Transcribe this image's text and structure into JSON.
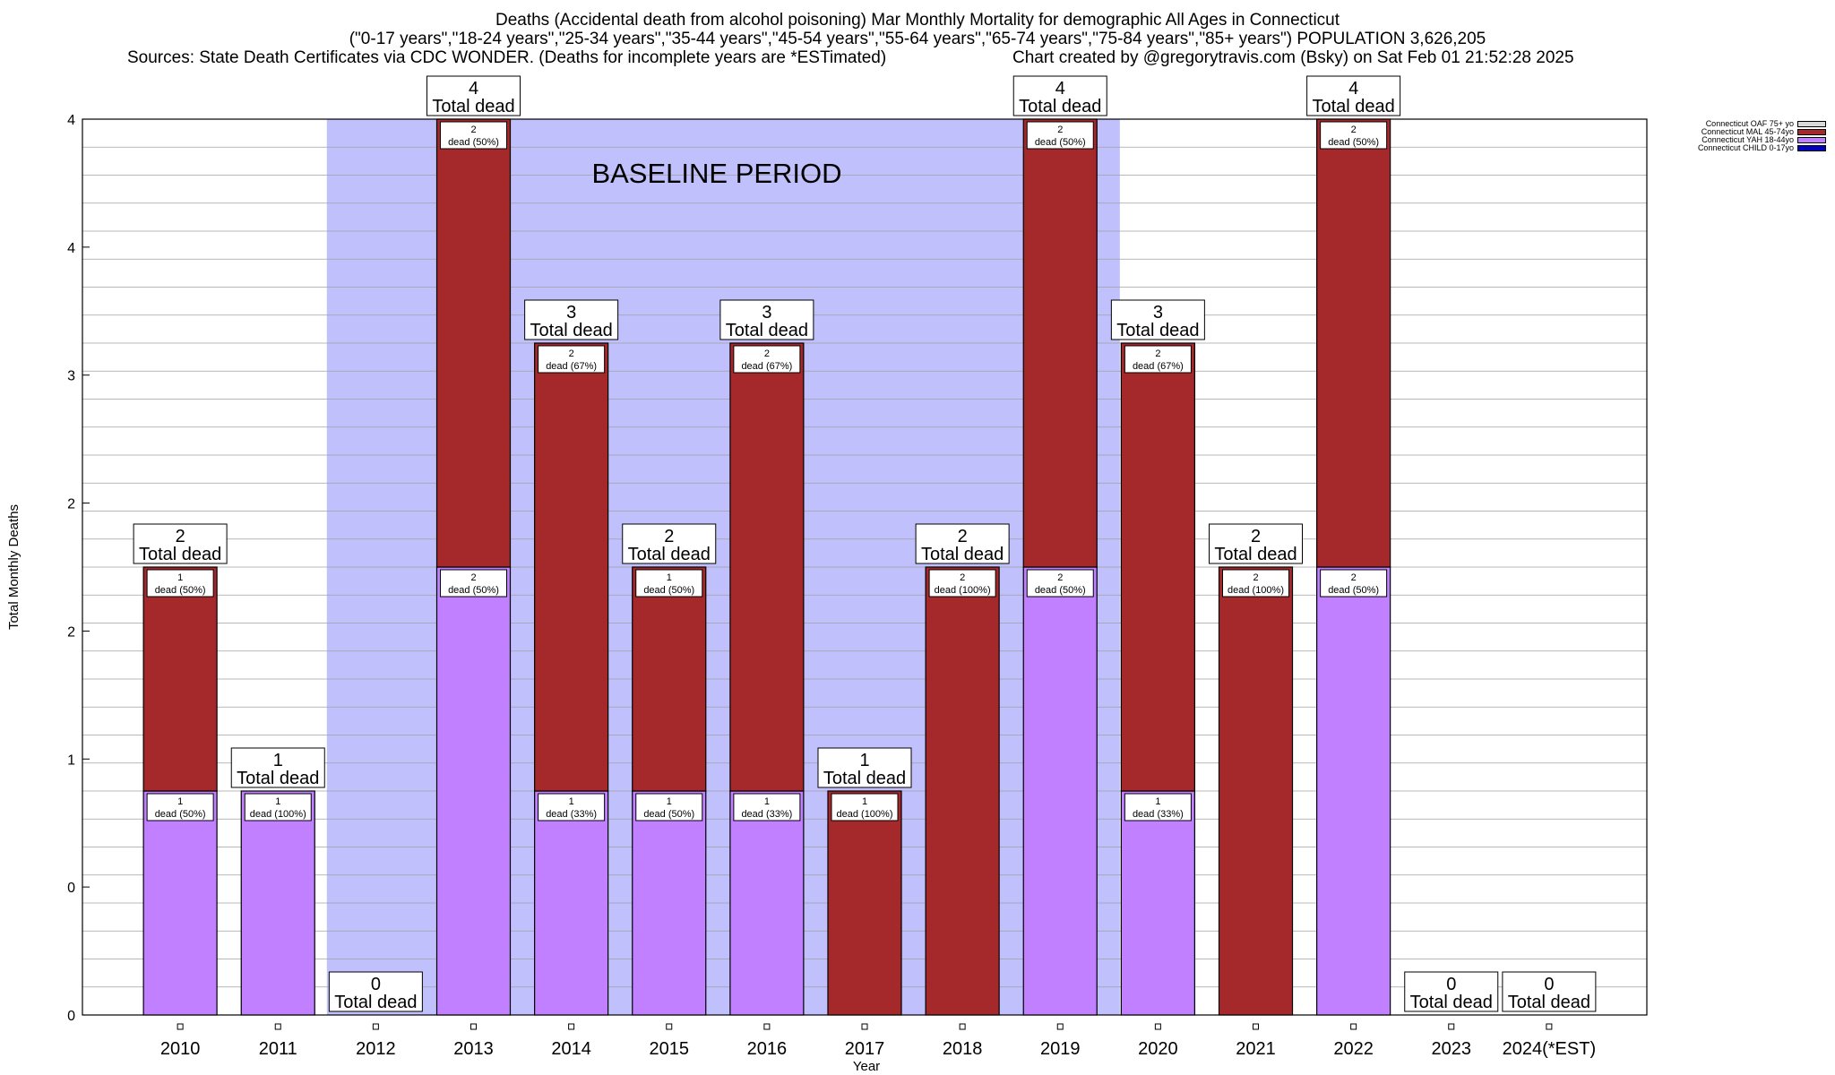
{
  "header": {
    "line1": "Deaths (Accidental death from alcohol poisoning) Mar Monthly Mortality for demographic All Ages in Connecticut",
    "line2": "(\"0-17 years\",\"18-24 years\",\"25-34 years\",\"35-44 years\",\"45-54 years\",\"55-64 years\",\"65-74 years\",\"75-84 years\",\"85+ years\") POPULATION 3,626,205",
    "line3_left": "Sources: State Death Certificates via CDC WONDER. (Deaths for incomplete years are *ESTimated)",
    "line3_right": "Chart created by @gregorytravis.com (Bsky) on Sat Feb 01 21:52:28 2025"
  },
  "colors": {
    "baseline": "#c0c0fc",
    "oaf": "#d9d9d9",
    "mal": "#a5282a",
    "yah": "#c080ff",
    "child": "#0000c0"
  },
  "chart_data": {
    "type": "bar",
    "stacked": true,
    "xlabel": "Year",
    "ylabel": "Total Monthly Deaths",
    "ylim": [
      0,
      4
    ],
    "y_tick_labels": [
      "0",
      "0",
      "1",
      "2",
      "2",
      "3",
      "4",
      "4"
    ],
    "grid": true,
    "legend_position": "top-right",
    "baseline_label": "BASELINE PERIOD",
    "baseline_range": [
      "2012",
      "2019"
    ],
    "total_label_suffix": "Total dead",
    "categories": [
      "2010",
      "2011",
      "2012",
      "2013",
      "2014",
      "2015",
      "2016",
      "2017",
      "2018",
      "2019",
      "2020",
      "2021",
      "2022",
      "2023",
      "2024(*EST)"
    ],
    "totals": [
      2,
      1,
      0,
      4,
      3,
      2,
      3,
      1,
      2,
      4,
      3,
      2,
      4,
      0,
      0
    ],
    "series": [
      {
        "name": "Connecticut YAH 18-44yo",
        "values": [
          1,
          1,
          0,
          2,
          1,
          1,
          1,
          0,
          0,
          2,
          1,
          0,
          2,
          0,
          0
        ],
        "labels": [
          "dead (50%)",
          "dead (100%)",
          "",
          "dead (50%)",
          "dead (33%)",
          "dead (50%)",
          "dead (33%)",
          "",
          "",
          "dead (50%)",
          "dead (33%)",
          "",
          "dead (50%)",
          "",
          ""
        ]
      },
      {
        "name": "Connecticut MAL 45-74yo",
        "values": [
          1,
          0,
          0,
          2,
          2,
          1,
          2,
          1,
          2,
          2,
          2,
          2,
          2,
          0,
          0
        ],
        "labels": [
          "dead (50%)",
          "",
          "",
          "dead (50%)",
          "dead (67%)",
          "dead (50%)",
          "dead (67%)",
          "dead (100%)",
          "dead (100%)",
          "dead (50%)",
          "dead (67%)",
          "dead (100%)",
          "dead (50%)",
          "",
          ""
        ]
      }
    ],
    "legend": [
      {
        "name": "Connecticut OAF 75+ yo",
        "color_key": "oaf"
      },
      {
        "name": "Connecticut MAL 45-74yo",
        "color_key": "mal"
      },
      {
        "name": "Connecticut YAH 18-44yo",
        "color_key": "yah"
      },
      {
        "name": "Connecticut CHILD 0-17yo",
        "color_key": "child"
      }
    ]
  }
}
